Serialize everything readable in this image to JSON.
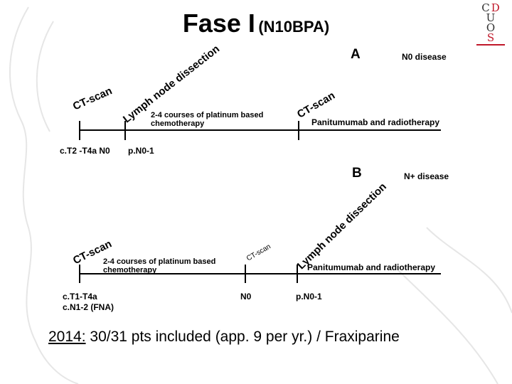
{
  "title": {
    "main": "Fase I",
    "sub": "(N10BPA)"
  },
  "logo": {
    "letters": [
      "C",
      "D",
      "U",
      "O",
      "S"
    ]
  },
  "panel_a": {
    "letter": "A",
    "disease": "N0 disease",
    "ct_scan_start": "CT-scan",
    "lymph_node_dissection": "Lymph node dissection",
    "chemo": "2-4 courses of platinum based chemotherapy",
    "ct_scan_mid": "CT-scan",
    "panitumumab": "Panitumumab and radiotherapy",
    "stage_start": "c.T2 -T4a N0",
    "stage_after": "p.N0-1"
  },
  "panel_b": {
    "letter": "B",
    "disease": "N+ disease",
    "ct_scan_start": "CT-scan",
    "chemo": "2-4 courses of platinum based chemotherapy",
    "ct_scan_mid": "CT-scan",
    "lymph_node_dissection": "Lymph node dissection",
    "panitumumab": "Panitumumab and radiotherapy",
    "stage_start_line1": "c.T1-T4a",
    "stage_start_line2": "c.N1-2 (FNA)",
    "stage_mid": "N0",
    "stage_after": "p.N0-1"
  },
  "footer": {
    "year": "2014:",
    "text": " 30/31 pts included (app. 9 per yr.) / Fraxiparine"
  }
}
